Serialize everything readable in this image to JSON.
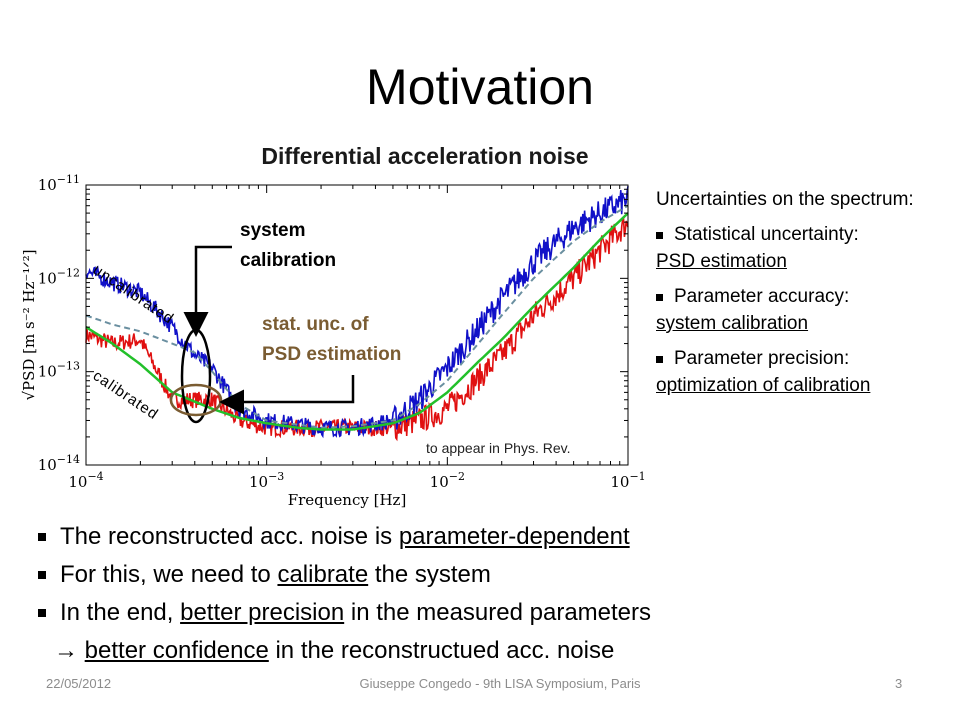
{
  "slide": {
    "title": "Motivation",
    "chart_heading": "Differential acceleration noise",
    "annotations": {
      "system_calibration_1": "system",
      "system_calibration_2": "calibration",
      "stat_unc_1": "stat. unc. of",
      "stat_unc_2": "PSD estimation",
      "uncalibrated": "uncalibrated",
      "calibrated": "calibrated",
      "citation": "to appear  in Phys. Rev."
    },
    "right_panel": {
      "intro": "Uncertainties on the spectrum:",
      "items": [
        {
          "label": "Statistical uncertainty:",
          "detail": "PSD estimation"
        },
        {
          "label": "Parameter accuracy:",
          "detail": "system calibration"
        },
        {
          "label": "Parameter precision:",
          "detail": "optimization of calibration"
        }
      ]
    },
    "bullets": {
      "b1_pre": "The reconstructed acc. noise is ",
      "b1_u": "parameter-dependent",
      "b2_pre": "For this, we need to ",
      "b2_u": "calibrate",
      "b2_post": " the system",
      "b3_pre": "In the end, ",
      "b3_u": "better precision",
      "b3_post": " in the measured parameters",
      "b4_arrow": "→ ",
      "b4_u": "better confidence",
      "b4_post": " in the reconstructued acc. noise"
    },
    "footer": {
      "date": "22/05/2012",
      "center": "Giuseppe Congedo - 9th LISA Symposium, Paris",
      "page": "3"
    }
  },
  "chart_data": {
    "type": "line",
    "title": "Differential acceleration noise",
    "xlabel": "Frequency [Hz]",
    "ylabel": "√PSD [m s⁻² Hz⁻¹ᐟ²]",
    "xscale": "log",
    "yscale": "log",
    "xlim": [
      0.0001,
      0.1
    ],
    "ylim": [
      1e-14,
      1e-11
    ],
    "xticks": [
      {
        "value": 0.0001,
        "base": "10",
        "exp": "−4"
      },
      {
        "value": 0.001,
        "base": "10",
        "exp": "−3"
      },
      {
        "value": 0.01,
        "base": "10",
        "exp": "−2"
      },
      {
        "value": 0.1,
        "base": "10",
        "exp": "−1"
      }
    ],
    "yticks": [
      {
        "value": 1e-14,
        "base": "10",
        "exp": "−14"
      },
      {
        "value": 1e-13,
        "base": "10",
        "exp": "−13"
      },
      {
        "value": 1e-12,
        "base": "10",
        "exp": "−12"
      },
      {
        "value": 1e-11,
        "base": "10",
        "exp": "−11"
      }
    ],
    "colors": {
      "uncalibrated": "#1010c8",
      "calibrated": "#e01010",
      "model": "#22c02a",
      "dashed": "#6a8fa0"
    },
    "series": [
      {
        "key": "uncalibrated",
        "x": [
          0.0001,
          0.00014,
          0.0002,
          0.0003,
          0.0004,
          0.0005,
          0.0007,
          0.001,
          0.002,
          0.003,
          0.005,
          0.007,
          0.01,
          0.02,
          0.03,
          0.05,
          0.07,
          0.1
        ],
        "y": [
          1.2e-12,
          9e-13,
          7e-13,
          3e-13,
          1.5e-13,
          1.1e-13,
          4e-14,
          3e-14,
          2.5e-14,
          2.5e-14,
          3e-14,
          5e-14,
          1.1e-13,
          6e-13,
          1.5e-12,
          3.5e-12,
          5e-12,
          7e-12
        ]
      },
      {
        "key": "calibrated",
        "x": [
          0.0001,
          0.00014,
          0.0002,
          0.0003,
          0.0004,
          0.0005,
          0.0007,
          0.001,
          0.002,
          0.003,
          0.005,
          0.007,
          0.01,
          0.02,
          0.03,
          0.05,
          0.07,
          0.1
        ],
        "y": [
          2.5e-13,
          2e-13,
          2.2e-13,
          5e-14,
          5e-14,
          5e-14,
          3e-14,
          2.5e-14,
          2.5e-14,
          2.5e-14,
          2.5e-14,
          3e-14,
          4e-14,
          1.5e-13,
          4e-13,
          1e-12,
          2e-12,
          4e-12
        ]
      },
      {
        "key": "model",
        "x": [
          0.0001,
          0.00014,
          0.0002,
          0.0003,
          0.0005,
          0.0007,
          0.001,
          0.0015,
          0.002,
          0.003,
          0.005,
          0.007,
          0.01,
          0.015,
          0.02,
          0.03,
          0.05,
          0.07,
          0.1
        ],
        "y": [
          3e-13,
          2e-13,
          1.2e-13,
          6e-14,
          4e-14,
          3.2e-14,
          2.8e-14,
          2.5e-14,
          2.4e-14,
          2.4e-14,
          2.8e-14,
          3.6e-14,
          6e-14,
          1.3e-13,
          2.2e-13,
          5e-13,
          1.3e-12,
          2.6e-12,
          5e-12
        ]
      },
      {
        "key": "dashed",
        "x": [
          0.0001,
          0.00014,
          0.0002,
          0.0003,
          0.0004,
          0.0005,
          0.0007,
          0.001,
          0.002,
          0.003,
          0.005,
          0.007,
          0.01,
          0.02,
          0.03,
          0.05,
          0.07,
          0.1
        ],
        "y": [
          4e-13,
          3.2e-13,
          2.7e-13,
          2e-13,
          1.6e-13,
          1e-13,
          4.5e-14,
          3e-14,
          2.5e-14,
          2.6e-14,
          3e-14,
          4.5e-14,
          8e-14,
          4e-13,
          1e-12,
          2.5e-12,
          4e-12,
          6e-12
        ]
      }
    ]
  }
}
